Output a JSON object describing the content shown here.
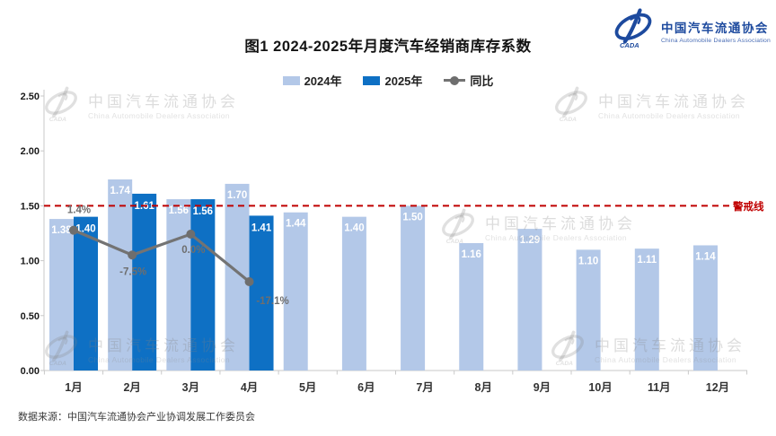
{
  "header": {
    "title": "图1  2024-2025年月度汽车经销商库存系数"
  },
  "logo": {
    "name_cn": "中国汽车流通协会",
    "name_en": "China Automobile Dealers Association",
    "abbr": "CADA",
    "color_primary": "#1d4a9e",
    "color_en": "#4a6db5"
  },
  "legend": [
    {
      "label": "2024年",
      "color": "#b3c8e8"
    },
    {
      "label": "2025年",
      "color": "#0e70c4"
    },
    {
      "label": "同比",
      "color": "#737373"
    }
  ],
  "chart_data": {
    "type": "bar",
    "title": "图1  2024-2025年月度汽车经销商库存系数",
    "categories": [
      "1月",
      "2月",
      "3月",
      "4月",
      "5月",
      "6月",
      "7月",
      "8月",
      "9月",
      "10月",
      "11月",
      "12月"
    ],
    "series": [
      {
        "name": "2024年",
        "type": "bar",
        "color": "#b3c8e8",
        "label_color": "#ffffff",
        "values": [
          1.38,
          1.74,
          1.56,
          1.7,
          1.44,
          1.4,
          1.5,
          1.16,
          1.29,
          1.1,
          1.11,
          1.14
        ]
      },
      {
        "name": "2025年",
        "type": "bar",
        "color": "#0e70c4",
        "label_color": "#ffffff",
        "values": [
          1.4,
          1.61,
          1.56,
          1.41,
          null,
          null,
          null,
          null,
          null,
          null,
          null,
          null
        ]
      },
      {
        "name": "同比",
        "type": "line",
        "color": "#737373",
        "marker_color": "#6e6e6e",
        "unit": "%",
        "values": [
          1.4,
          -7.5,
          0.0,
          -17.1,
          null,
          null,
          null,
          null,
          null,
          null,
          null,
          null
        ]
      }
    ],
    "yticks": [
      "0.00",
      "0.50",
      "1.00",
      "1.50",
      "2.00",
      "2.50"
    ],
    "ylim": [
      0,
      2.5
    ],
    "grid": false,
    "legend_position": "top",
    "warning_line": {
      "value": 1.5,
      "label": "警戒线",
      "color": "#c00000"
    }
  },
  "watermark": {
    "text_cn": "中国汽车流通协会",
    "text_en": "China Automobile Dealers Association"
  },
  "footer": {
    "source": "数据来源：中国汽车流通协会产业协调发展工作委员会"
  }
}
